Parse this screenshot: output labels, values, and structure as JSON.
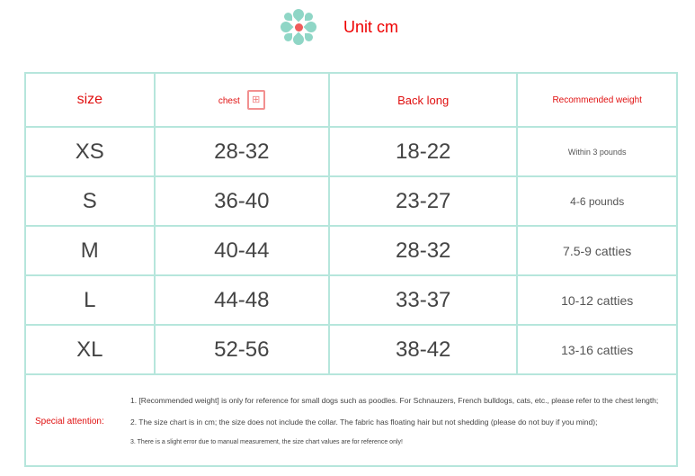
{
  "header": {
    "unit": "Unit cm"
  },
  "columns": [
    "size",
    "chest",
    "Back long",
    "Recommended weight"
  ],
  "rows": [
    {
      "size": "XS",
      "chest": "28-32",
      "back": "18-22",
      "weight": "Within 3 pounds"
    },
    {
      "size": "S",
      "chest": "36-40",
      "back": "23-27",
      "weight": "4-6 pounds"
    },
    {
      "size": "M",
      "chest": "40-44",
      "back": "28-32",
      "weight": "7.5-9 catties"
    },
    {
      "size": "L",
      "chest": "44-48",
      "back": "33-37",
      "weight": "10-12 catties"
    },
    {
      "size": "XL",
      "chest": "52-56",
      "back": "38-42",
      "weight": "13-16 catties"
    }
  ],
  "notes": {
    "label": "Special attention:",
    "items": [
      "1. [Recommended weight] is only for reference for small dogs such as poodles. For Schnauzers, French bulldogs, cats, etc., please refer to the chest length;",
      "2. The size chart is in cm; the size does not include the collar. The fabric has floating hair but not shedding (please do not buy if you mind);",
      "3. There is a slight error due to manual measurement, the size chart values are for reference only!"
    ]
  },
  "colors": {
    "accent": "#e01010",
    "border": "#b6e6dc",
    "flower": "#8fd6c6"
  }
}
